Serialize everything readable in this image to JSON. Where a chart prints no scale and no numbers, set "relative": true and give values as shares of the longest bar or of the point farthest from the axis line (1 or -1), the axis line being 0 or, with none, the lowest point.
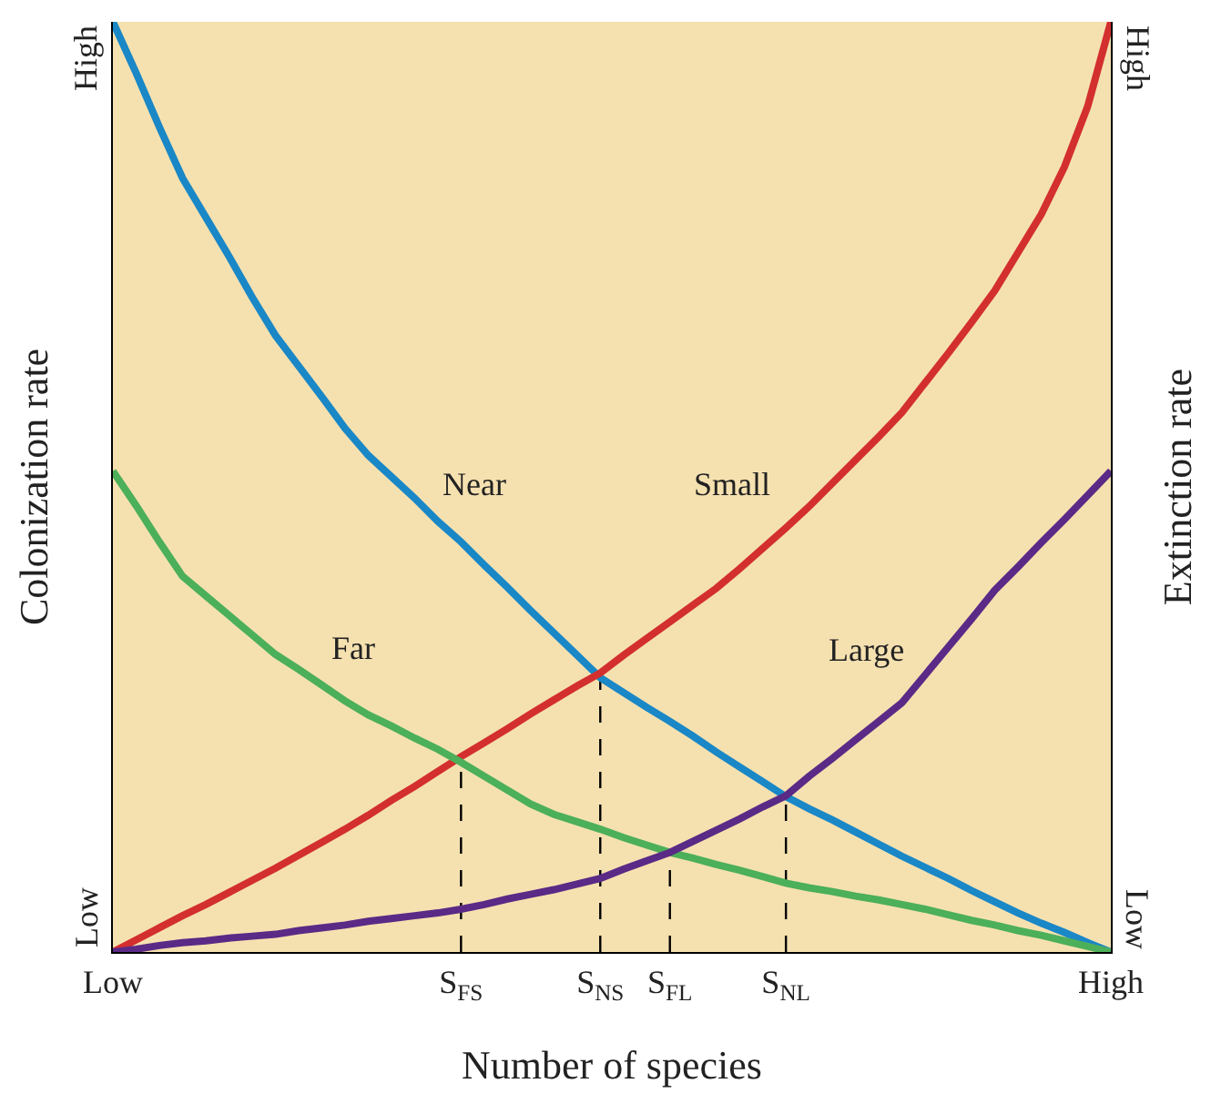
{
  "chart_data": {
    "type": "line",
    "relative": true,
    "xlabel": "Number of species",
    "ylabel": "Colonization rate",
    "y2label": "Extinction rate",
    "categories": [
      "Low",
      null,
      null,
      null,
      null,
      null,
      null,
      null,
      null,
      null,
      null,
      null,
      null,
      null,
      null,
      "S$_{FS}$",
      null,
      null,
      null,
      null,
      null,
      "S$_{NS}$",
      null,
      null,
      "S$_{FL}$",
      null,
      null,
      null,
      null,
      "S$_{NL}$",
      null,
      null,
      null,
      null,
      null,
      null,
      null,
      null,
      null,
      null,
      null,
      null,
      null,
      "High"
    ],
    "annotations": [
      "Low",
      "High",
      "Low",
      "High"
    ],
    "grid": false,
    "legend": false,
    "marker": "none",
    "line_style": "solid",
    "ref_lines": [
      {
        "axis": "x",
        "value": "S$_{FS}$",
        "line_style": "dashed",
        "color": "#000000"
      },
      {
        "axis": "x",
        "value": "S$_{NS}$",
        "line_style": "dashed",
        "color": "#000000"
      },
      {
        "axis": "x",
        "value": "S$_{FL}$",
        "line_style": "dashed",
        "color": "#000000"
      },
      {
        "axis": "x",
        "value": "S$_{NL}$",
        "line_style": "dashed",
        "color": "#000000"
      }
    ],
    "series": [
      {
        "name": "Near",
        "color": "#1a87c6",
        "values": [
          1.0,
          0.945,
          0.887,
          0.832,
          0.79,
          0.748,
          0.704,
          0.663,
          0.63,
          0.597,
          0.563,
          0.534,
          0.511,
          0.488,
          0.463,
          0.441,
          0.416,
          0.392,
          0.367,
          0.343,
          0.319,
          0.295,
          0.279,
          0.263,
          0.248,
          0.232,
          0.215,
          0.199,
          0.183,
          0.167,
          0.154,
          0.142,
          0.129,
          0.116,
          0.103,
          0.091,
          0.079,
          0.066,
          0.054,
          0.042,
          0.031,
          0.021,
          0.01,
          0
        ]
      },
      {
        "name": "Small",
        "color": "#d32f2f",
        "values": [
          0,
          0.013,
          0.026,
          0.039,
          0.051,
          0.064,
          0.077,
          0.09,
          0.104,
          0.118,
          0.132,
          0.147,
          0.163,
          0.178,
          0.194,
          0.21,
          0.225,
          0.24,
          0.256,
          0.271,
          0.286,
          0.3,
          0.319,
          0.337,
          0.355,
          0.373,
          0.391,
          0.412,
          0.434,
          0.456,
          0.479,
          0.504,
          0.529,
          0.554,
          0.58,
          0.612,
          0.644,
          0.677,
          0.711,
          0.752,
          0.793,
          0.844,
          0.909,
          1.0
        ]
      },
      {
        "name": "Far",
        "color": "#4caf5a",
        "values": [
          0.517,
          0.48,
          0.441,
          0.404,
          0.383,
          0.362,
          0.341,
          0.32,
          0.304,
          0.287,
          0.27,
          0.255,
          0.243,
          0.23,
          0.218,
          0.204,
          0.189,
          0.174,
          0.159,
          0.148,
          0.14,
          0.132,
          0.123,
          0.115,
          0.107,
          0.101,
          0.094,
          0.088,
          0.081,
          0.074,
          0.069,
          0.065,
          0.06,
          0.056,
          0.051,
          0.046,
          0.04,
          0.034,
          0.029,
          0.023,
          0.018,
          0.012,
          0.006,
          0
        ]
      },
      {
        "name": "Large",
        "color": "#5b2a86",
        "values": [
          0,
          0.003,
          0.007,
          0.01,
          0.012,
          0.015,
          0.017,
          0.019,
          0.023,
          0.026,
          0.029,
          0.033,
          0.036,
          0.039,
          0.042,
          0.046,
          0.051,
          0.057,
          0.062,
          0.067,
          0.073,
          0.079,
          0.089,
          0.098,
          0.107,
          0.119,
          0.131,
          0.143,
          0.156,
          0.168,
          0.189,
          0.208,
          0.228,
          0.248,
          0.268,
          0.298,
          0.328,
          0.358,
          0.389,
          0.414,
          0.44,
          0.465,
          0.491,
          0.517
        ]
      }
    ]
  }
}
